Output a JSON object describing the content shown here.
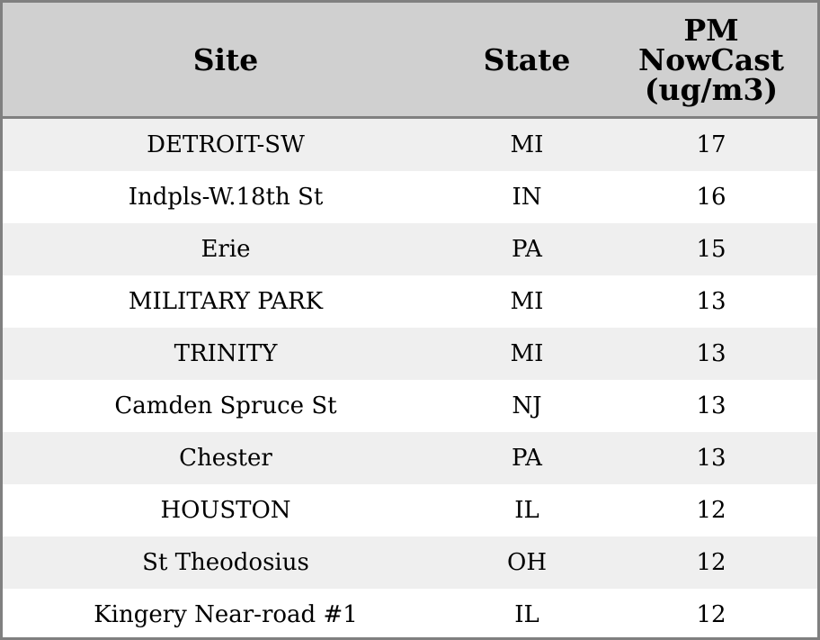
{
  "table": {
    "headers": {
      "site": "Site",
      "state": "State",
      "pm_lines": [
        "PM",
        "NowCast",
        "(ug/m3)"
      ]
    },
    "rows": [
      {
        "site": "DETROIT-SW",
        "state": "MI",
        "pm": "17"
      },
      {
        "site": "Indpls-W.18th St",
        "state": "IN",
        "pm": "16"
      },
      {
        "site": "Erie",
        "state": "PA",
        "pm": "15"
      },
      {
        "site": "MILITARY PARK",
        "state": "MI",
        "pm": "13"
      },
      {
        "site": "TRINITY",
        "state": "MI",
        "pm": "13"
      },
      {
        "site": "Camden Spruce St",
        "state": "NJ",
        "pm": "13"
      },
      {
        "site": "Chester",
        "state": "PA",
        "pm": "13"
      },
      {
        "site": "HOUSTON",
        "state": "IL",
        "pm": "12"
      },
      {
        "site": "St Theodosius",
        "state": "OH",
        "pm": "12"
      },
      {
        "site": "Kingery Near-road #1",
        "state": "IL",
        "pm": "12"
      }
    ]
  }
}
